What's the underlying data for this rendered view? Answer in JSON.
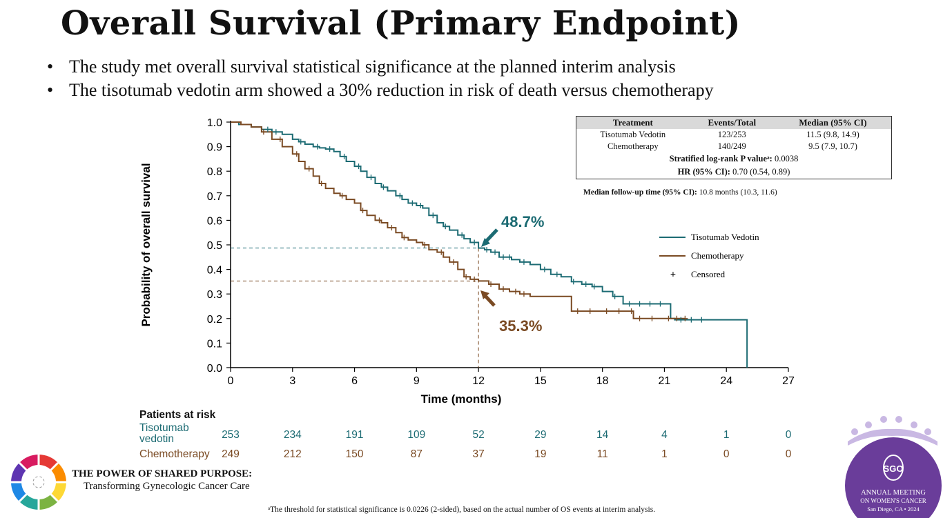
{
  "slide": {
    "title": "Overall Survival (Primary Endpoint)",
    "bullets": [
      "The study met overall survival statistical significance at the planned interim analysis",
      "The tisotumab vedotin arm showed a 30% reduction in risk of death versus chemotherapy"
    ],
    "footnote": "ᵃThe threshold for statistical significance is 0.0226 (2-sided), based on the actual number of OS events at interim analysis.",
    "brand_line1": "THE POWER OF SHARED PURPOSE:",
    "brand_line2": "Transforming Gynecologic Cancer Care",
    "sgo": {
      "abbr": "SGO",
      "line1": "ANNUAL MEETING",
      "line2": "ON WOMEN'S CANCER",
      "line3": "San Diego, CA • 2024"
    }
  },
  "summary_table": {
    "headers": [
      "Treatment",
      "Events/Total",
      "Median (95% CI)"
    ],
    "rows": [
      {
        "treatment": "Tisotumab Vedotin",
        "events": "123/253",
        "median": "11.5 (9.8, 14.9)"
      },
      {
        "treatment": "Chemotherapy",
        "events": "140/249",
        "median": "9.5 (7.9, 10.7)"
      }
    ],
    "pvalue_label": "Stratified log-rank P valueᵃ:",
    "pvalue": "0.0038",
    "hr_label": "HR (95% CI):",
    "hr": "0.70 (0.54, 0.89)",
    "followup_label": "Median follow-up time (95% CI):",
    "followup": "10.8 months (10.3, 11.6)"
  },
  "risk_table": {
    "title": "Patients at risk",
    "rows": [
      {
        "label_line1": "Tisotumab",
        "label_line2": "vedotin",
        "color": "#1c6b73",
        "values": [
          "253",
          "234",
          "191",
          "109",
          "52",
          "29",
          "14",
          "4",
          "1",
          "0"
        ]
      },
      {
        "label_line1": "Chemotherapy",
        "label_line2": "",
        "color": "#7a4a23",
        "values": [
          "249",
          "212",
          "150",
          "87",
          "37",
          "19",
          "11",
          "1",
          "0",
          "0"
        ]
      }
    ]
  },
  "chart_data": {
    "type": "line",
    "title": "",
    "xlabel": "Time (months)",
    "ylabel": "Probability of overall survival",
    "xlim": [
      0,
      27
    ],
    "ylim": [
      0.0,
      1.0
    ],
    "x_ticks": [
      "0",
      "3",
      "6",
      "9",
      "12",
      "15",
      "18",
      "21",
      "24",
      "27"
    ],
    "y_ticks": [
      "0.0",
      "0.1",
      "0.2",
      "0.3",
      "0.4",
      "0.5",
      "0.6",
      "0.7",
      "0.8",
      "0.9",
      "1.0"
    ],
    "legend_position": "right",
    "legend": [
      "Tisotumab Vedotin",
      "Chemotherapy",
      "Censored"
    ],
    "censor_symbol": "+",
    "annotations": [
      {
        "text": "48.7%",
        "series": "Tisotumab Vedotin",
        "x": 12,
        "y": 0.487
      },
      {
        "text": "35.3%",
        "series": "Chemotherapy",
        "x": 12,
        "y": 0.353
      }
    ],
    "series": [
      {
        "name": "Tisotumab Vedotin",
        "color": "#1c6b73",
        "step": true,
        "x": [
          0,
          0.4,
          1.0,
          1.5,
          2.0,
          2.5,
          3.0,
          3.3,
          3.6,
          4.0,
          4.3,
          4.6,
          5.0,
          5.3,
          5.6,
          6.0,
          6.3,
          6.6,
          7.0,
          7.3,
          7.6,
          8.0,
          8.3,
          8.6,
          9.0,
          9.3,
          9.6,
          10.0,
          10.3,
          10.6,
          11.0,
          11.3,
          11.6,
          12.0,
          12.3,
          12.6,
          13.0,
          13.6,
          14.0,
          14.5,
          15.0,
          15.5,
          16.0,
          16.5,
          17.0,
          17.5,
          18.0,
          18.5,
          19.0,
          19.5,
          20.0,
          21.0,
          21.3,
          21.5,
          22.0,
          23.0,
          24.0,
          24.9,
          25.0
        ],
        "y": [
          1.0,
          0.99,
          0.98,
          0.97,
          0.96,
          0.95,
          0.93,
          0.92,
          0.91,
          0.9,
          0.895,
          0.89,
          0.88,
          0.86,
          0.84,
          0.82,
          0.8,
          0.775,
          0.75,
          0.735,
          0.72,
          0.7,
          0.685,
          0.67,
          0.66,
          0.65,
          0.62,
          0.59,
          0.575,
          0.56,
          0.54,
          0.525,
          0.51,
          0.487,
          0.48,
          0.47,
          0.45,
          0.44,
          0.43,
          0.42,
          0.4,
          0.38,
          0.37,
          0.35,
          0.34,
          0.33,
          0.31,
          0.29,
          0.26,
          0.26,
          0.26,
          0.26,
          0.2,
          0.195,
          0.195,
          0.195,
          0.195,
          0.195,
          0.0
        ],
        "censored_x": [
          1.8,
          2.2,
          3.4,
          4.2,
          4.8,
          5.5,
          6.2,
          6.8,
          7.4,
          8.2,
          8.8,
          9.2,
          9.8,
          10.4,
          11.2,
          11.8,
          12.4,
          12.8,
          13.2,
          13.5,
          14.2,
          15.2,
          15.8,
          16.6,
          17.2,
          17.6,
          18.6,
          19.3,
          19.8,
          20.3,
          20.8,
          21.8,
          22.3,
          22.8
        ]
      },
      {
        "name": "Chemotherapy",
        "color": "#7a4a23",
        "step": true,
        "x": [
          0,
          0.5,
          1.0,
          1.5,
          2.0,
          2.5,
          3.0,
          3.3,
          3.6,
          4.0,
          4.3,
          4.6,
          5.0,
          5.3,
          5.6,
          6.0,
          6.3,
          6.6,
          7.0,
          7.3,
          7.6,
          8.0,
          8.3,
          8.6,
          9.0,
          9.3,
          9.6,
          10.0,
          10.3,
          10.6,
          11.0,
          11.3,
          11.6,
          12.0,
          12.5,
          13.0,
          13.5,
          14.0,
          14.5,
          15.0,
          15.5,
          16.0,
          16.5,
          17.0,
          18.0,
          19.0,
          19.5,
          20.0,
          21.0,
          22.0
        ],
        "y": [
          1.0,
          0.99,
          0.98,
          0.96,
          0.93,
          0.9,
          0.87,
          0.84,
          0.81,
          0.78,
          0.75,
          0.73,
          0.71,
          0.7,
          0.685,
          0.67,
          0.64,
          0.62,
          0.6,
          0.59,
          0.57,
          0.55,
          0.53,
          0.52,
          0.51,
          0.5,
          0.48,
          0.47,
          0.45,
          0.43,
          0.4,
          0.37,
          0.36,
          0.353,
          0.34,
          0.32,
          0.31,
          0.3,
          0.29,
          0.29,
          0.29,
          0.29,
          0.23,
          0.23,
          0.23,
          0.23,
          0.2,
          0.2,
          0.2,
          0.2
        ],
        "censored_x": [
          1.6,
          2.4,
          3.2,
          3.8,
          4.4,
          5.4,
          6.4,
          7.2,
          7.8,
          8.4,
          9.4,
          10.2,
          10.8,
          11.4,
          11.8,
          12.6,
          13.2,
          13.8,
          14.2,
          16.8,
          17.4,
          18.2,
          18.8,
          19.4,
          19.8,
          20.4,
          21.2,
          21.6,
          22.0
        ]
      }
    ]
  }
}
